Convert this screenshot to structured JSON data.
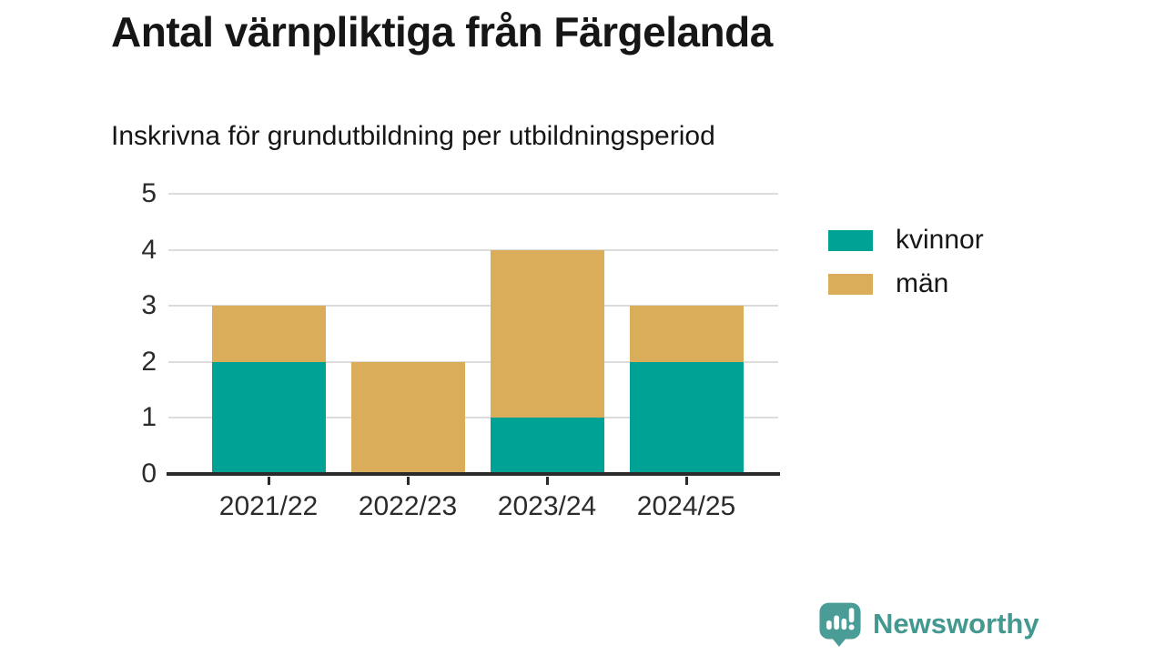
{
  "header": {
    "title": "Antal värnpliktiga från Färgelanda",
    "subtitle": "Inskrivna för grundutbildning per utbildningsperiod"
  },
  "chart_data": {
    "type": "bar",
    "stacked": true,
    "title": "Antal värnpliktiga från Färgelanda",
    "subtitle": "Inskrivna för grundutbildning per utbildningsperiod",
    "categories": [
      "2021/22",
      "2022/23",
      "2023/24",
      "2024/25"
    ],
    "series": [
      {
        "name": "kvinnor",
        "color": "#00a296",
        "values": [
          2,
          0,
          1,
          2
        ]
      },
      {
        "name": "män",
        "color": "#d9ad5a",
        "values": [
          1,
          2,
          3,
          1
        ]
      }
    ],
    "totals": [
      3,
      2,
      4,
      3
    ],
    "xlabel": "",
    "ylabel": "",
    "ylim": [
      0,
      5
    ],
    "yticks": [
      0,
      1,
      2,
      3,
      4,
      5
    ],
    "grid": true,
    "legend_position": "right",
    "axis_color": "#2b2b2b",
    "gridline_color": "#dcdcdc"
  },
  "footer": {
    "brand": "Newsworthy",
    "brand_color": "#43988f",
    "icon": "newsworthy-speech-bubble-chart-icon"
  }
}
